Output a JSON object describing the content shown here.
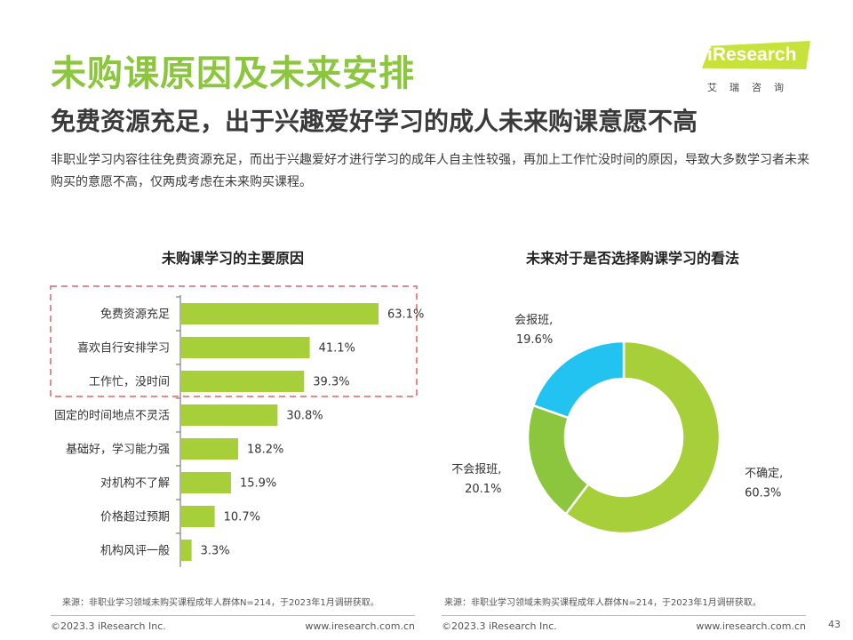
{
  "header": {
    "title": "未购课原因及未来安排",
    "subtitle": "免费资源充足，出于兴趣爱好学习的成人未来购课意愿不高",
    "description": "非职业学习内容往往免费资源充足，而出于兴趣爱好才进行学习的成年人自主性较强，再加上工作忙没时间的原因，导致大多数学习者未来购买的意愿不高，仅两成考虑在未来购买课程。"
  },
  "logo": {
    "name": "iResearch",
    "sub": "艾瑞咨询"
  },
  "colors": {
    "bar": "#a6cf3a",
    "green": "#8cc63f",
    "blue": "#22c3f0",
    "highlight": "#e88a8a"
  },
  "chart_data": [
    {
      "type": "bar",
      "orientation": "horizontal",
      "title": "未购课学习的主要原因",
      "categories": [
        "免费资源充足",
        "喜欢自行安排学习",
        "工作忙，没时间",
        "固定的时间地点不灵活",
        "基础好，学习能力强",
        "对机构不了解",
        "价格超过预期",
        "机构风评一般"
      ],
      "values": [
        63.1,
        41.1,
        39.3,
        30.8,
        18.2,
        15.9,
        10.7,
        3.3
      ],
      "value_labels": [
        "63.1%",
        "41.1%",
        "39.3%",
        "30.8%",
        "18.2%",
        "15.9%",
        "10.7%",
        "3.3%"
      ],
      "unit": "%",
      "xlim": [
        0,
        63.1
      ],
      "highlighted_categories": [
        "免费资源充足",
        "喜欢自行安排学习",
        "工作忙，没时间"
      ]
    },
    {
      "type": "pie",
      "subtype": "donut",
      "title": "未来对于是否选择购课学习的看法",
      "slices": [
        {
          "label": "不确定,",
          "value": 60.3,
          "value_label": "60.3%",
          "color": "#a6cf3a"
        },
        {
          "label": "不会报班,",
          "value": 20.1,
          "value_label": "20.1%",
          "color": "#8cc63f"
        },
        {
          "label": "会报班,",
          "value": 19.6,
          "value_label": "19.6%",
          "color": "#22c3f0"
        }
      ]
    }
  ],
  "sources": {
    "left": "来源：非职业学习领域未购买课程成年人群体N=214，于2023年1月调研获取。",
    "right": "来源：非职业学习领域未购买课程成年人群体N=214，于2023年1月调研获取。"
  },
  "footer": {
    "copyright_left": "©2023.3 iResearch Inc.",
    "url_left": "www.iresearch.com.cn",
    "copyright_right": "©2023.3 iResearch Inc.",
    "url_right": "www.iresearch.com.cn",
    "page_number": "43"
  }
}
